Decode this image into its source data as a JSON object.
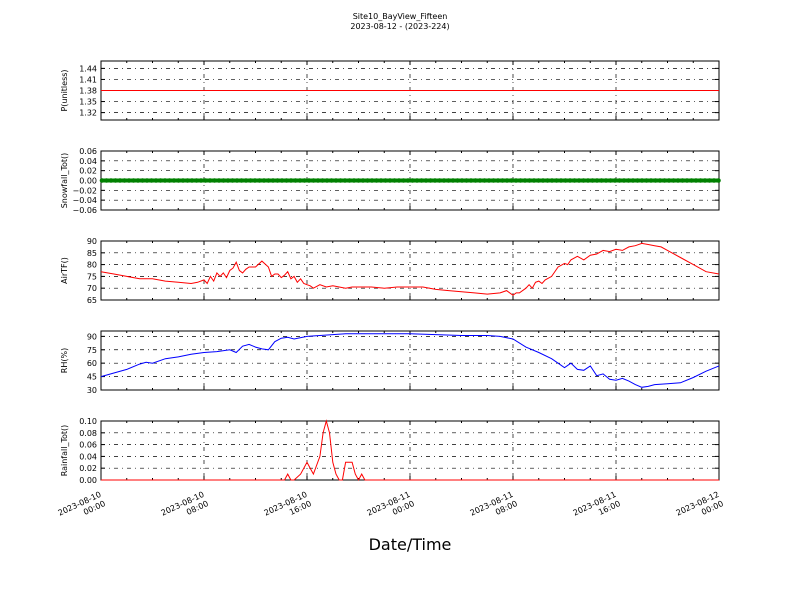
{
  "figure": {
    "title_line1": "Site10_BayView_Fifteen",
    "title_line2": "2023-08-12 - (2023-224)",
    "xlabel": "Date/Time",
    "x_ticks": [
      {
        "t": 0,
        "line1": "2023-08-10",
        "line2": "00:00"
      },
      {
        "t": 8,
        "line1": "2023-08-10",
        "line2": "08:00"
      },
      {
        "t": 16,
        "line1": "2023-08-10",
        "line2": "16:00"
      },
      {
        "t": 24,
        "line1": "2023-08-11",
        "line2": "00:00"
      },
      {
        "t": 32,
        "line1": "2023-08-11",
        "line2": "08:00"
      },
      {
        "t": 40,
        "line1": "2023-08-11",
        "line2": "16:00"
      },
      {
        "t": 48,
        "line1": "2023-08-12",
        "line2": "00:00"
      }
    ]
  },
  "chart_data": [
    {
      "type": "line",
      "ylabel": "P(unitless)",
      "ylim": [
        1.3,
        1.46
      ],
      "yticks": [
        "1.32",
        "1.35",
        "1.38",
        "1.41",
        "1.44"
      ],
      "ytick_values": [
        1.32,
        1.35,
        1.38,
        1.41,
        1.44
      ],
      "grid": true,
      "color": "#ff0000",
      "marker": "none",
      "x": [
        0,
        48
      ],
      "y": [
        1.38,
        1.38
      ]
    },
    {
      "type": "line",
      "ylabel": "Snowfall_Tot()",
      "ylim": [
        -0.06,
        0.06
      ],
      "yticks": [
        "0.06",
        "0.04",
        "0.02",
        "0.00",
        "−0.02",
        "−0.04",
        "−0.06"
      ],
      "ytick_values": [
        0.06,
        0.04,
        0.02,
        0.0,
        -0.02,
        -0.04,
        -0.06
      ],
      "grid": true,
      "color": "#008000",
      "marker": "dots",
      "x": [
        0,
        48
      ],
      "y": [
        0.0,
        0.0
      ]
    },
    {
      "type": "line",
      "ylabel": "AirTF()",
      "ylim": [
        65,
        90
      ],
      "yticks": [
        "90",
        "85",
        "80",
        "75",
        "70",
        "65"
      ],
      "ytick_values": [
        90,
        85,
        80,
        75,
        70,
        65
      ],
      "grid": true,
      "color": "#ff0000",
      "marker": "none",
      "x": [
        0,
        1,
        2,
        3,
        4,
        5,
        6,
        7,
        7.5,
        8,
        8.25,
        8.5,
        8.75,
        9,
        9.25,
        9.5,
        9.75,
        10,
        10.25,
        10.5,
        10.75,
        11,
        11.25,
        11.5,
        12,
        12.5,
        13,
        13.25,
        13.5,
        13.75,
        14,
        14.25,
        14.5,
        14.75,
        15,
        15.25,
        15.5,
        15.75,
        16,
        16.25,
        16.5,
        17,
        17.5,
        18,
        18.5,
        19,
        19.5,
        20,
        21,
        22,
        23,
        24,
        25,
        26,
        27,
        28,
        29,
        30,
        31,
        31.5,
        32,
        32.25,
        32.5,
        33,
        33.25,
        33.5,
        33.75,
        34,
        34.25,
        34.5,
        35,
        35.5,
        36,
        36.25,
        36.5,
        37,
        37.5,
        38,
        38.5,
        39,
        39.5,
        40,
        40.5,
        41,
        41.5,
        42,
        42.5,
        43,
        43.5,
        44,
        45,
        46,
        47,
        48
      ],
      "y": [
        77.0,
        76.0,
        75.0,
        74.0,
        74.0,
        73.0,
        72.5,
        72.0,
        72.5,
        73.5,
        72.0,
        75.0,
        73.0,
        76.5,
        75.0,
        76.5,
        74.5,
        77.5,
        78.5,
        81.0,
        77.5,
        76.5,
        78.0,
        79.0,
        79.0,
        81.5,
        79.0,
        75.0,
        76.0,
        76.0,
        74.5,
        75.5,
        77.0,
        74.0,
        75.0,
        72.5,
        74.0,
        72.0,
        71.5,
        71.0,
        70.0,
        71.5,
        70.5,
        71.0,
        70.5,
        70.0,
        70.5,
        70.5,
        70.5,
        70.0,
        70.5,
        70.5,
        70.5,
        69.5,
        69.0,
        68.5,
        68.0,
        67.5,
        68.0,
        69.0,
        67.0,
        68.0,
        68.0,
        70.0,
        71.5,
        70.0,
        72.5,
        73.0,
        72.0,
        73.5,
        75.0,
        79.0,
        80.5,
        80.0,
        82.0,
        83.5,
        82.0,
        84.0,
        84.5,
        86.0,
        85.5,
        86.5,
        86.0,
        87.5,
        88.0,
        89.0,
        88.5,
        88.0,
        87.5,
        86.0,
        83.0,
        80.0,
        77.0,
        76.0
      ]
    },
    {
      "type": "line",
      "ylabel": "RH(%)",
      "ylim": [
        30,
        96
      ],
      "yticks": [
        "90",
        "75",
        "60",
        "45",
        "30"
      ],
      "ytick_values": [
        90,
        75,
        60,
        45,
        30
      ],
      "grid": true,
      "color": "#0000ff",
      "marker": "none",
      "x": [
        0,
        1,
        2,
        3,
        3.5,
        4,
        5,
        6,
        7,
        8,
        9,
        10,
        10.5,
        11,
        11.5,
        12,
        12.5,
        13,
        13.5,
        14,
        14.5,
        15,
        16,
        17,
        18,
        19,
        20,
        21,
        22,
        23,
        24,
        26,
        28,
        30,
        31,
        32,
        33,
        34,
        35,
        35.5,
        36,
        36.5,
        37,
        37.5,
        38,
        38.5,
        39,
        39.5,
        40,
        40.5,
        41,
        41.5,
        42,
        42.5,
        43,
        44,
        45,
        46,
        47,
        48
      ],
      "y": [
        45,
        49,
        53,
        59,
        61,
        60,
        65,
        67,
        70,
        72,
        73,
        75,
        72,
        79,
        81,
        78,
        76,
        75,
        84,
        88,
        89,
        87,
        90,
        91,
        92,
        93,
        93,
        93,
        93,
        93,
        93,
        92,
        91,
        91,
        90,
        87,
        78,
        72,
        65,
        60,
        55,
        60,
        53,
        52,
        57,
        46,
        48,
        42,
        41,
        43,
        40,
        36,
        33,
        34,
        36,
        37,
        38,
        44,
        51,
        57
      ]
    },
    {
      "type": "line",
      "ylabel": "Rainfall_Tot()",
      "ylim": [
        0,
        0.1
      ],
      "yticks": [
        "0.10",
        "0.08",
        "0.06",
        "0.04",
        "0.02",
        "0.00"
      ],
      "ytick_values": [
        0.1,
        0.08,
        0.06,
        0.04,
        0.02,
        0.0
      ],
      "grid": true,
      "color": "#ff0000",
      "marker": "none",
      "x": [
        0,
        14,
        14.25,
        14.5,
        14.75,
        15,
        15.5,
        16,
        16.25,
        16.5,
        17,
        17.25,
        17.5,
        17.75,
        18,
        18.25,
        18.5,
        18.75,
        19,
        19.25,
        19.5,
        19.75,
        20,
        20.25,
        20.5,
        48
      ],
      "y": [
        0,
        0,
        0,
        0.01,
        0,
        0,
        0.01,
        0.03,
        0.02,
        0.01,
        0.04,
        0.08,
        0.1,
        0.08,
        0.03,
        0.01,
        0,
        0,
        0.03,
        0.03,
        0.03,
        0.01,
        0,
        0.01,
        0,
        0
      ]
    }
  ]
}
